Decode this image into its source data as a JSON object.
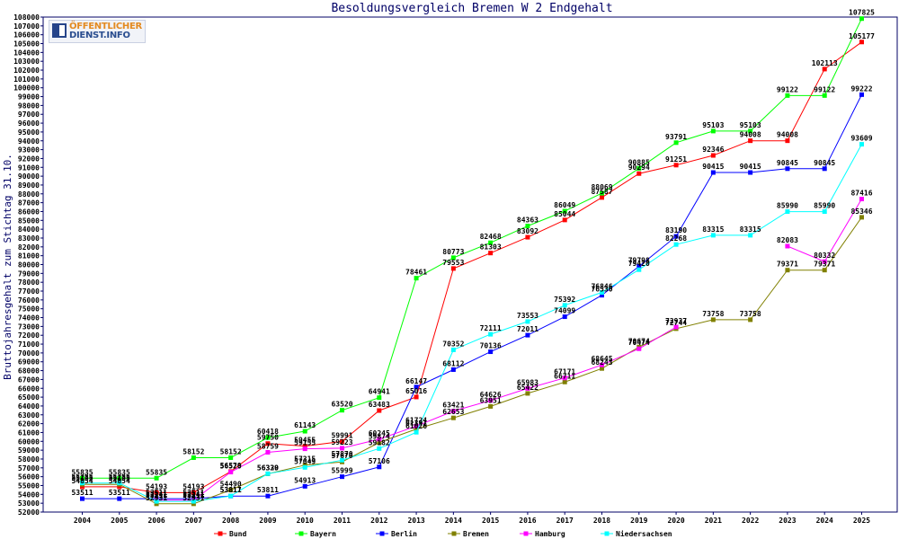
{
  "logo": {
    "line1": "ÖFFENTLICHER",
    "line2": "DIENST.INFO"
  },
  "chart_data": {
    "type": "line",
    "title": "Besoldungsvergleich Bremen W 2 Endgehalt",
    "ylabel": "Bruttojahresgehalt zum Stichtag 31.10.",
    "xlabel": "",
    "ylim": [
      52000,
      108000
    ],
    "ytick_step": 1000,
    "grid": false,
    "legend_position": "bottom",
    "categories": [
      "2004",
      "2005",
      "2006",
      "2007",
      "2008",
      "2009",
      "2010",
      "2011",
      "2012",
      "2013",
      "2014",
      "2015",
      "2016",
      "2017",
      "2018",
      "2019",
      "2020",
      "2021",
      "2022",
      "2023",
      "2024",
      "2025"
    ],
    "series": [
      {
        "name": "Bund",
        "color": "#ff0000",
        "values": [
          54854,
          54854,
          54193,
          54193,
          56579,
          59750,
          59455,
          59991,
          63483,
          65016,
          79553,
          81303,
          83092,
          85044,
          87587,
          90294,
          91251,
          92346,
          94008,
          94008,
          102113,
          105177
        ]
      },
      {
        "name": "Bayern",
        "color": "#00ff00",
        "values": [
          55835,
          55835,
          55835,
          58152,
          58152,
          60418,
          61143,
          63520,
          64941,
          78461,
          80773,
          82468,
          84363,
          86049,
          88069,
          90885,
          93791,
          95103,
          95103,
          99122,
          99122,
          107825
        ]
      },
      {
        "name": "Berlin",
        "color": "#0000ff",
        "values": [
          53511,
          53511,
          53511,
          53511,
          53811,
          53811,
          54913,
          55999,
          57106,
          66147,
          68112,
          70136,
          72011,
          74099,
          76530,
          79798,
          83190,
          90415,
          90415,
          90845,
          90845,
          99222
        ]
      },
      {
        "name": "Bremen",
        "color": "#808000",
        "values": [
          55135,
          55135,
          52931,
          52931,
          54490,
          56320,
          57315,
          57670,
          59874,
          61391,
          62653,
          63951,
          65422,
          66711,
          68243,
          70674,
          72744,
          73758,
          73758,
          79371,
          79371,
          85346
        ]
      },
      {
        "name": "Hamburg",
        "color": "#ff00ff",
        "values": [
          null,
          null,
          53341,
          53341,
          56520,
          58759,
          59155,
          59223,
          60245,
          61724,
          63421,
          64626,
          65983,
          67171,
          68645,
          70474,
          72937,
          null,
          null,
          82083,
          80332,
          87416
        ]
      },
      {
        "name": "Niedersachsen",
        "color": "#00ffff",
        "values": [
          55285,
          55285,
          53211,
          53211,
          53817,
          56339,
          57049,
          57870,
          59182,
          61026,
          70352,
          72111,
          73553,
          75392,
          76846,
          79420,
          82268,
          83315,
          83315,
          85990,
          85990,
          93609
        ]
      }
    ]
  }
}
